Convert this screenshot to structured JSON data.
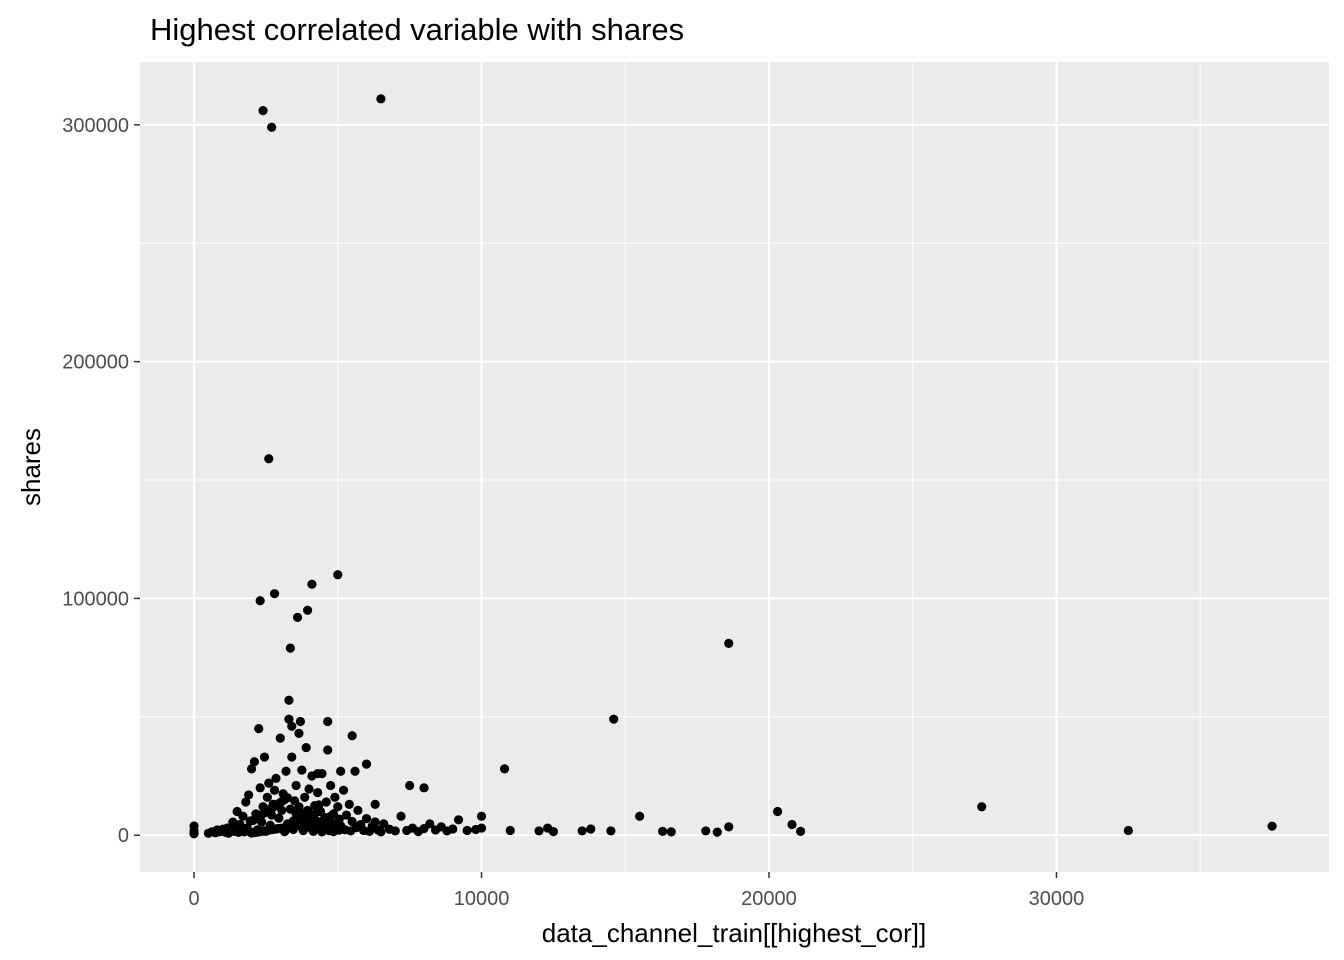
{
  "chart_data": {
    "type": "scatter",
    "title": "Highest correlated variable with shares",
    "xlabel": "data_channel_train[[highest_cor]]",
    "ylabel": "shares",
    "xlim": [
      -1880,
      39480
    ],
    "ylim": [
      -15550,
      326550
    ],
    "x_ticks": [
      0,
      10000,
      20000,
      30000
    ],
    "x_tick_labels": [
      "0",
      "10000",
      "20000",
      "30000"
    ],
    "y_ticks": [
      0,
      100000,
      200000,
      300000
    ],
    "y_tick_labels": [
      "0",
      "100000",
      "200000",
      "300000"
    ],
    "grid": true,
    "colors": {
      "panel_background": "#ebebeb",
      "gridline": "#ffffff",
      "point": "#000000",
      "tick_label": "#4d4d4d",
      "axis_title": "#000000"
    },
    "points": [
      [
        0,
        600
      ],
      [
        0,
        1200
      ],
      [
        0,
        1800
      ],
      [
        0,
        3900
      ],
      [
        500,
        800
      ],
      [
        620,
        1400
      ],
      [
        750,
        1000
      ],
      [
        800,
        2200
      ],
      [
        900,
        1500
      ],
      [
        950,
        1800
      ],
      [
        1000,
        2500
      ],
      [
        1100,
        1200
      ],
      [
        1150,
        3000
      ],
      [
        1200,
        800
      ],
      [
        1300,
        2000
      ],
      [
        1350,
        5500
      ],
      [
        1400,
        1600
      ],
      [
        1450,
        3300
      ],
      [
        1500,
        10000
      ],
      [
        1550,
        1200
      ],
      [
        1600,
        4500
      ],
      [
        1650,
        2200
      ],
      [
        1700,
        8000
      ],
      [
        1750,
        1400
      ],
      [
        1800,
        14000
      ],
      [
        1850,
        3000
      ],
      [
        1900,
        17000
      ],
      [
        1950,
        6000
      ],
      [
        2000,
        28000
      ],
      [
        2050,
        1200
      ],
      [
        2100,
        31000
      ],
      [
        2150,
        9000
      ],
      [
        2200,
        2200
      ],
      [
        2250,
        45000
      ],
      [
        2300,
        20000
      ],
      [
        2350,
        5500
      ],
      [
        2400,
        12000
      ],
      [
        2450,
        33000
      ],
      [
        2500,
        1600
      ],
      [
        2550,
        16000
      ],
      [
        2600,
        22000
      ],
      [
        2650,
        4200
      ],
      [
        2700,
        8500
      ],
      [
        2750,
        13000
      ],
      [
        2800,
        19000
      ],
      [
        2850,
        24000
      ],
      [
        2900,
        2800
      ],
      [
        2950,
        7200
      ],
      [
        3000,
        41000
      ],
      [
        3050,
        10500
      ],
      [
        3100,
        17500
      ],
      [
        3150,
        1500
      ],
      [
        3200,
        27000
      ],
      [
        3250,
        4800
      ],
      [
        3300,
        49000
      ],
      [
        3350,
        11000
      ],
      [
        3400,
        33000
      ],
      [
        3450,
        2400
      ],
      [
        3500,
        14500
      ],
      [
        3550,
        21000
      ],
      [
        3600,
        6500
      ],
      [
        3650,
        43000
      ],
      [
        3700,
        9500
      ],
      [
        3750,
        27500
      ],
      [
        3800,
        1900
      ],
      [
        3850,
        16000
      ],
      [
        3900,
        37000
      ],
      [
        3950,
        4000
      ],
      [
        4000,
        19500
      ],
      [
        4050,
        8200
      ],
      [
        4100,
        25000
      ],
      [
        4150,
        1600
      ],
      [
        4200,
        12500
      ],
      [
        4250,
        6000
      ],
      [
        4300,
        18000
      ],
      [
        4350,
        3300
      ],
      [
        4400,
        10000
      ],
      [
        4450,
        26000
      ],
      [
        4500,
        2700
      ],
      [
        4550,
        7500
      ],
      [
        4600,
        14000
      ],
      [
        4650,
        36000
      ],
      [
        4700,
        1900
      ],
      [
        4750,
        21000
      ],
      [
        4800,
        5000
      ],
      [
        4850,
        9000
      ],
      [
        4900,
        16000
      ],
      [
        4950,
        2500
      ],
      [
        5000,
        12000
      ],
      [
        5050,
        6800
      ],
      [
        5100,
        4000
      ],
      [
        5200,
        19000
      ],
      [
        5250,
        2300
      ],
      [
        5300,
        8500
      ],
      [
        5400,
        13000
      ],
      [
        5450,
        1800
      ],
      [
        5500,
        5800
      ],
      [
        5600,
        27000
      ],
      [
        5650,
        3200
      ],
      [
        5700,
        10500
      ],
      [
        5800,
        4500
      ],
      [
        5900,
        2000
      ],
      [
        6000,
        7000
      ],
      [
        6100,
        1600
      ],
      [
        6200,
        3800
      ],
      [
        6300,
        5600
      ],
      [
        6400,
        2200
      ],
      [
        6500,
        1400
      ],
      [
        6600,
        4800
      ],
      [
        6800,
        2500
      ],
      [
        7000,
        1800
      ],
      [
        7200,
        8000
      ],
      [
        7400,
        2000
      ],
      [
        7600,
        3000
      ],
      [
        7800,
        1500
      ],
      [
        8000,
        2800
      ],
      [
        8200,
        4800
      ],
      [
        8400,
        2200
      ],
      [
        8600,
        3500
      ],
      [
        8800,
        1800
      ],
      [
        9000,
        2600
      ],
      [
        9200,
        6500
      ],
      [
        9500,
        2000
      ],
      [
        9800,
        2400
      ],
      [
        10000,
        3000
      ],
      [
        10000,
        8000
      ],
      [
        2000,
        900
      ],
      [
        2100,
        1100
      ],
      [
        2200,
        1300
      ],
      [
        2300,
        1500
      ],
      [
        2400,
        1700
      ],
      [
        2500,
        1900
      ],
      [
        2600,
        2100
      ],
      [
        2700,
        2300
      ],
      [
        2800,
        2500
      ],
      [
        2900,
        2700
      ],
      [
        3000,
        2900
      ],
      [
        3100,
        3100
      ],
      [
        3200,
        3300
      ],
      [
        3300,
        3500
      ],
      [
        3400,
        3700
      ],
      [
        3500,
        3900
      ],
      [
        3600,
        4100
      ],
      [
        3700,
        4300
      ],
      [
        3800,
        4500
      ],
      [
        3900,
        4700
      ],
      [
        4000,
        4900
      ],
      [
        4100,
        5100
      ],
      [
        4200,
        5300
      ],
      [
        4300,
        5500
      ],
      [
        4400,
        5700
      ],
      [
        2050,
        6200
      ],
      [
        2150,
        7000
      ],
      [
        2250,
        7800
      ],
      [
        2350,
        8600
      ],
      [
        2450,
        9400
      ],
      [
        2550,
        10200
      ],
      [
        2650,
        11000
      ],
      [
        2750,
        11800
      ],
      [
        2850,
        12600
      ],
      [
        2950,
        13400
      ],
      [
        3050,
        14200
      ],
      [
        3150,
        15000
      ],
      [
        3250,
        15800
      ],
      [
        3350,
        3000
      ],
      [
        3450,
        6000
      ],
      [
        3550,
        9000
      ],
      [
        3650,
        12000
      ],
      [
        3750,
        3500
      ],
      [
        3850,
        7000
      ],
      [
        3950,
        10500
      ],
      [
        4050,
        3200
      ],
      [
        4150,
        6400
      ],
      [
        4250,
        9600
      ],
      [
        4350,
        12800
      ],
      [
        4450,
        1400
      ],
      [
        4550,
        3600
      ],
      [
        4650,
        5800
      ],
      [
        4750,
        8000
      ],
      [
        4850,
        1500
      ],
      [
        4950,
        4400
      ],
      [
        5050,
        2100
      ],
      [
        2300,
        99000
      ],
      [
        2400,
        306000
      ],
      [
        2600,
        159000
      ],
      [
        2700,
        299000
      ],
      [
        2800,
        102000
      ],
      [
        3300,
        57000
      ],
      [
        3350,
        79000
      ],
      [
        3400,
        46000
      ],
      [
        3600,
        92000
      ],
      [
        3700,
        48000
      ],
      [
        3950,
        95000
      ],
      [
        4100,
        106000
      ],
      [
        4300,
        26000
      ],
      [
        4650,
        48000
      ],
      [
        5000,
        110000
      ],
      [
        5100,
        27000
      ],
      [
        5500,
        42000
      ],
      [
        6000,
        30000
      ],
      [
        6300,
        13000
      ],
      [
        6500,
        311000
      ],
      [
        7500,
        21000
      ],
      [
        8000,
        20000
      ],
      [
        10800,
        28000
      ],
      [
        11000,
        2000
      ],
      [
        12000,
        1800
      ],
      [
        12300,
        3000
      ],
      [
        12500,
        1500
      ],
      [
        13500,
        1800
      ],
      [
        13800,
        2600
      ],
      [
        14500,
        1800
      ],
      [
        14600,
        49000
      ],
      [
        15500,
        8000
      ],
      [
        16300,
        1600
      ],
      [
        16600,
        1400
      ],
      [
        17800,
        1800
      ],
      [
        18200,
        1300
      ],
      [
        18600,
        3500
      ],
      [
        18600,
        81000
      ],
      [
        20300,
        10000
      ],
      [
        20800,
        4500
      ],
      [
        21100,
        1600
      ],
      [
        27400,
        12000
      ],
      [
        32500,
        2000
      ],
      [
        37500,
        3800
      ]
    ]
  }
}
